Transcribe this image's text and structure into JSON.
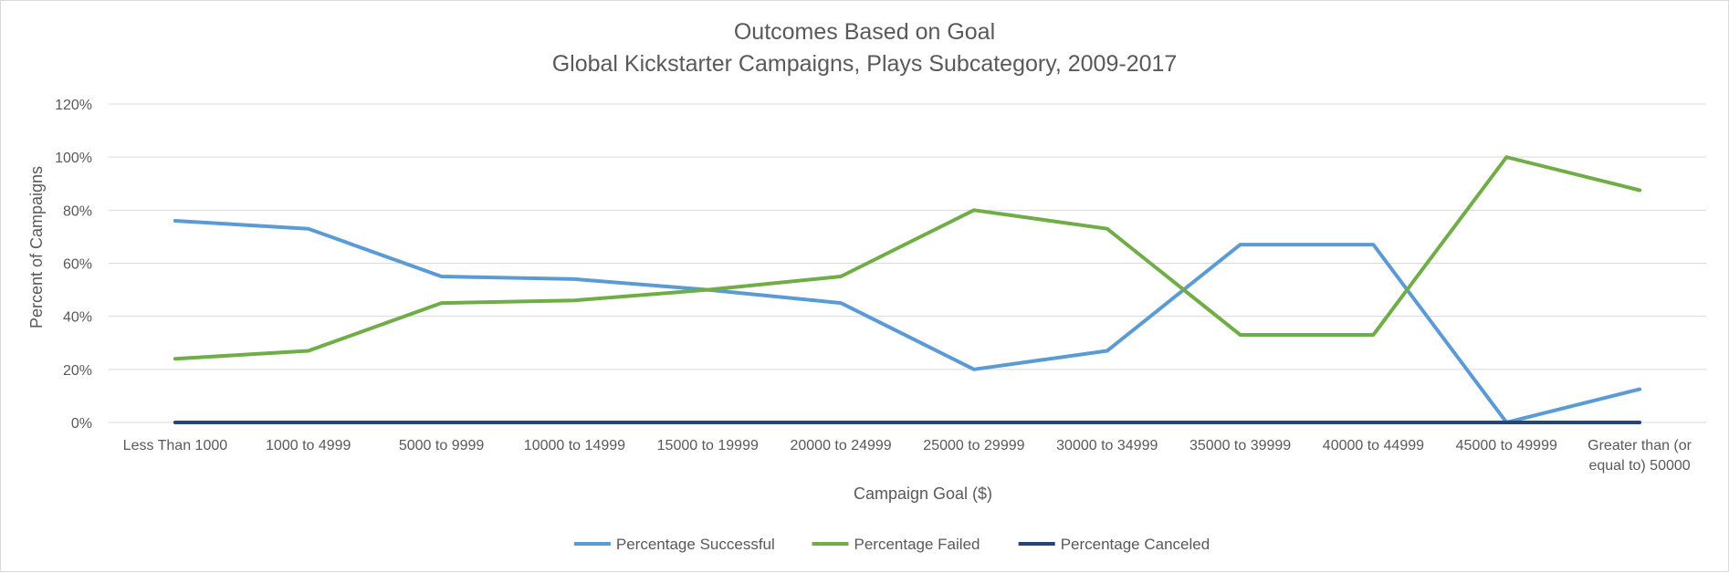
{
  "chart_data": {
    "type": "line",
    "title": "Outcomes Based on Goal",
    "subtitle": "Global Kickstarter Campaigns, Plays Subcategory, 2009-2017",
    "xlabel": "Campaign Goal ($)",
    "ylabel": "Percent of Campaigns",
    "ylim": [
      0,
      120
    ],
    "yticks": [
      "0%",
      "20%",
      "40%",
      "60%",
      "80%",
      "100%",
      "120%"
    ],
    "grid": true,
    "legend_position": "bottom",
    "categories": [
      "Less Than 1000",
      "1000 to 4999",
      "5000 to 9999",
      "10000 to 14999",
      "15000 to 19999",
      "20000 to 24999",
      "25000 to 29999",
      "30000 to 34999",
      "35000 to 39999",
      "40000 to 44999",
      "45000 to 49999",
      "Greater than (or equal to) 50000"
    ],
    "series": [
      {
        "name": "Percentage Successful",
        "color": "#5b9bd5",
        "values": [
          76,
          73,
          55,
          54,
          50,
          45,
          20,
          27,
          67,
          67,
          0,
          12.5
        ]
      },
      {
        "name": "Percentage Failed",
        "color": "#70ad47",
        "values": [
          24,
          27,
          45,
          46,
          50,
          55,
          80,
          73,
          33,
          33,
          100,
          87.5
        ]
      },
      {
        "name": "Percentage Canceled",
        "color": "#264478",
        "values": [
          0,
          0,
          0,
          0,
          0,
          0,
          0,
          0,
          0,
          0,
          0,
          0
        ]
      }
    ]
  }
}
